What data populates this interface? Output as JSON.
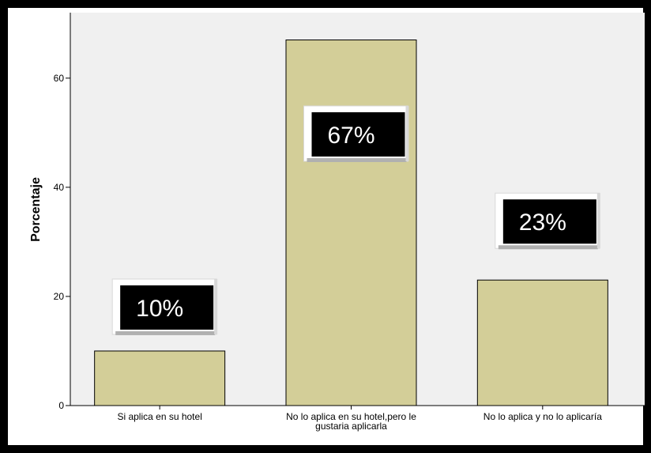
{
  "colors": {
    "frame": "#000000",
    "background": "#ffffff",
    "plot_area": "#f0f0f0",
    "bar_fill": "#d3ce98",
    "bar_stroke": "#000000",
    "annotation_fill": "#000000",
    "annotation_text": "#ffffff",
    "annotation_shadow": "#b0b0b0"
  },
  "chart_data": {
    "type": "bar",
    "categories": [
      [
        "Si aplica en su hotel"
      ],
      [
        "No lo aplica en su hotel,pero le",
        "gustaria aplicarla"
      ],
      [
        "No lo aplica y no lo aplicaría"
      ]
    ],
    "values": [
      10,
      67,
      23
    ],
    "annotations": [
      "10%",
      "67%",
      "23%"
    ],
    "ylabel": "Porcentaje",
    "xlabel": "",
    "ylim": [
      0,
      72
    ],
    "yticks": [
      0,
      20,
      40,
      60
    ],
    "grid": false,
    "legend": "none"
  }
}
